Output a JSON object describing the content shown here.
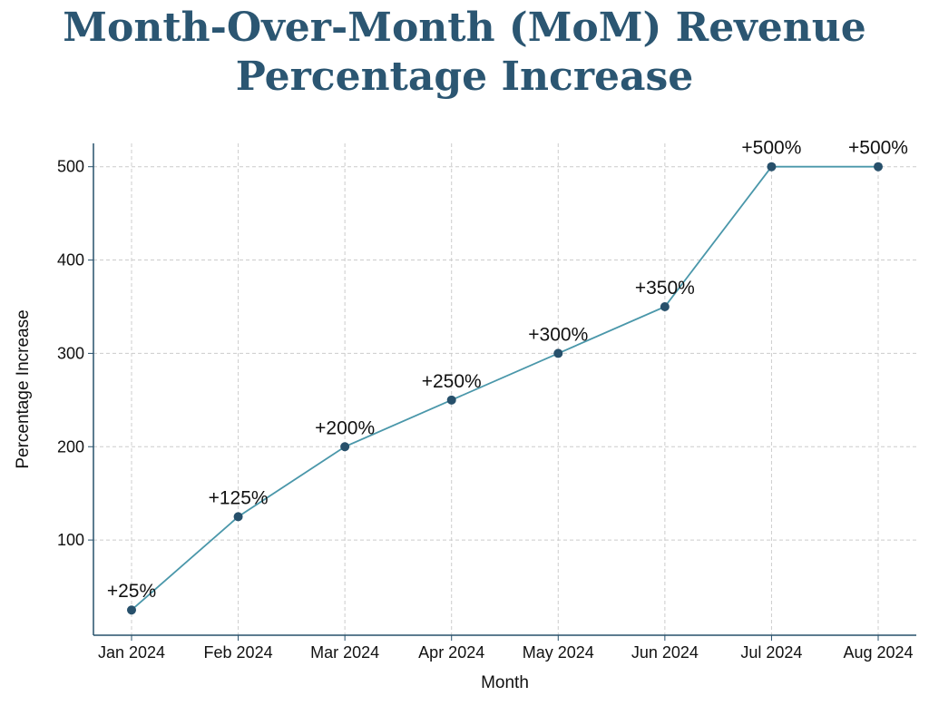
{
  "chart_data": {
    "type": "line",
    "title_lines": [
      "Month-Over-Month (MoM) Revenue",
      "Percentage Increase"
    ],
    "xlabel": "Month",
    "ylabel": "Percentage Increase",
    "categories": [
      "Jan 2024",
      "Feb 2024",
      "Mar 2024",
      "Apr 2024",
      "May 2024",
      "Jun 2024",
      "Jul 2024",
      "Aug 2024"
    ],
    "values": [
      25,
      125,
      200,
      250,
      300,
      350,
      500,
      500
    ],
    "data_labels": [
      "+25%",
      "+125%",
      "+200%",
      "+250%",
      "+300%",
      "+350%",
      "+500%",
      "+500%"
    ],
    "yticks": [
      100,
      200,
      300,
      400,
      500
    ],
    "ylim": [
      -2,
      525
    ],
    "grid": true,
    "colors": {
      "line": "#4a97aa",
      "marker": "#27506b",
      "axis": "#27506b",
      "grid": "#cccccc",
      "title": "#2b5672"
    }
  }
}
